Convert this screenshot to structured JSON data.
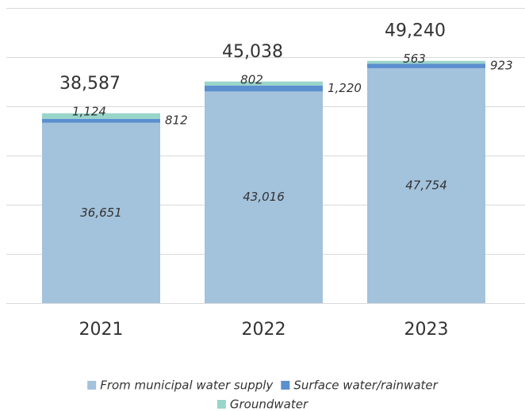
{
  "chart_data": {
    "type": "stacked_bar",
    "categories": [
      "2021",
      "2022",
      "2023"
    ],
    "series": [
      {
        "name": "From municipal water supply",
        "color": "#a3c2dc",
        "values": [
          36651,
          43016,
          47754
        ],
        "value_labels": [
          "36,651",
          "43,016",
          "47,754"
        ]
      },
      {
        "name": "Surface water/rainwater",
        "color": "#5b8fcf",
        "values": [
          812,
          1220,
          923
        ],
        "value_labels": [
          "812",
          "1,220",
          "923"
        ]
      },
      {
        "name": "Groundwater",
        "color": "#99d5c9",
        "values": [
          1124,
          802,
          563
        ],
        "value_labels": [
          "1,124",
          "802",
          "563"
        ]
      }
    ],
    "totals": [
      38587,
      45038,
      49240
    ],
    "total_labels": [
      "38,587",
      "45,038",
      "49,240"
    ],
    "ylim": [
      0,
      60000
    ],
    "yticks": [
      0,
      10000,
      20000,
      30000,
      40000,
      50000,
      60000
    ],
    "grid": true
  }
}
